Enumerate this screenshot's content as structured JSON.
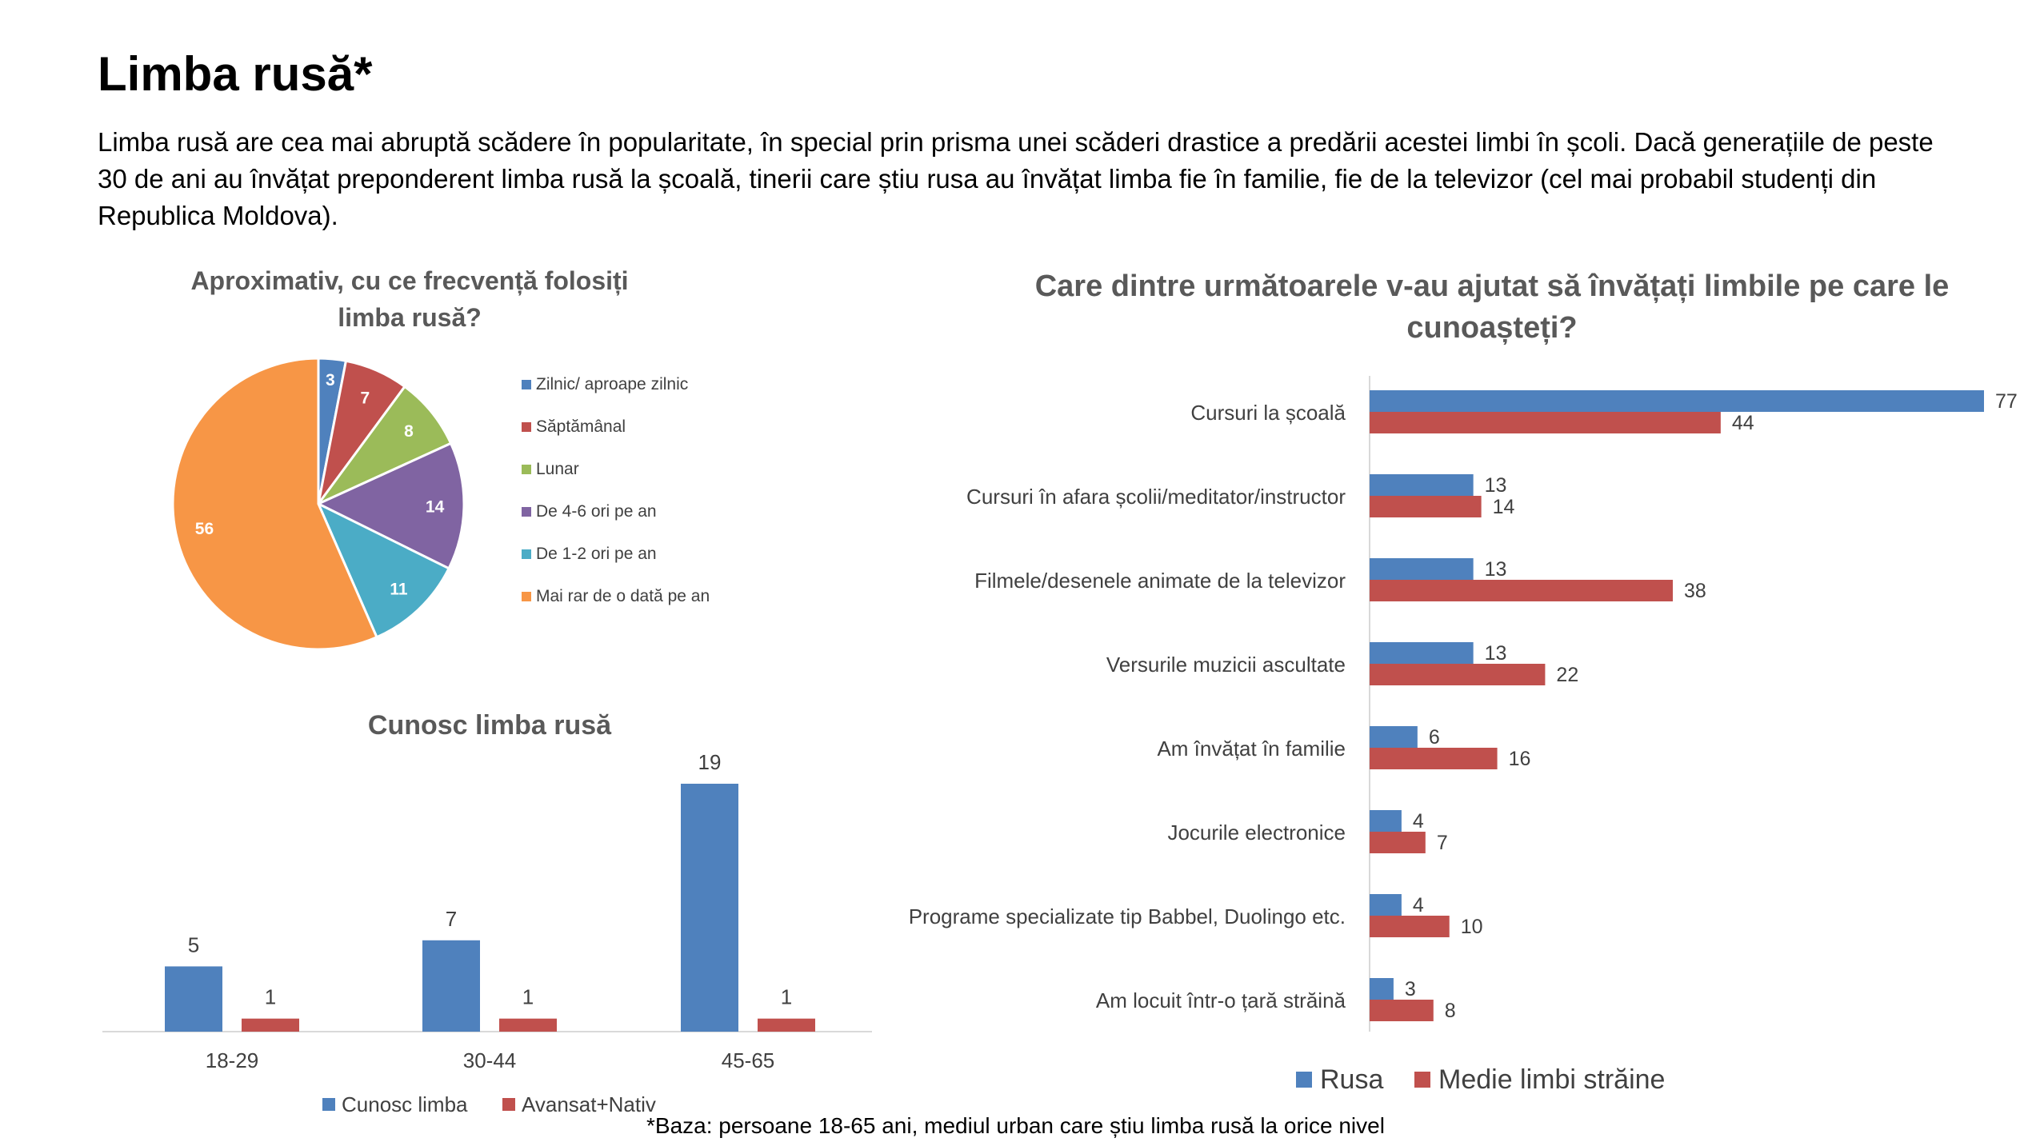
{
  "page": {
    "title": "Limba rusă*",
    "intro": "Limba rusă are cea mai abruptă scădere în popularitate, în special prin prisma unei scăderi drastice a predării acestei limbi în școli. Dacă generațiile de peste 30 de ani au învățat preponderent limba rusă la școală, tinerii care știu rusa au învățat limba fie în familie, fie de la televizor (cel mai probabil studenți din Republica Moldova).",
    "footnote": "*Baza: persoane 18-65 ani, mediul urban care știu limba rusă la orice nivel"
  },
  "chart_data": [
    {
      "type": "pie",
      "title": "Aproximativ, cu ce frecvență folosiți limba rusă?",
      "title_lines": [
        "Aproximativ, cu ce frecvență folosiți",
        "limba rusă?"
      ],
      "legend_position": "right",
      "labels": [
        "Zilnic/ aproape zilnic",
        "Săptămânal",
        "Lunar",
        "De 4-6 ori pe an",
        "De 1-2 ori pe an",
        "Mai rar de o dată pe an"
      ],
      "values": [
        3,
        7,
        8,
        14,
        11,
        56
      ],
      "colors": [
        "#4F81BD",
        "#C0504D",
        "#9BBB59",
        "#8064A2",
        "#4BACC6",
        "#F79646"
      ]
    },
    {
      "type": "bar",
      "title": "Cunosc limba rusă",
      "categories": [
        "18-29",
        "30-44",
        "45-65"
      ],
      "series": [
        {
          "name": "Cunosc limba",
          "values": [
            5,
            7,
            19
          ],
          "color": "#4F81BD"
        },
        {
          "name": "Avansat+Nativ",
          "values": [
            1,
            1,
            1
          ],
          "color": "#C0504D"
        }
      ],
      "ylim": [
        0,
        19
      ],
      "legend_position": "bottom",
      "grid": false
    },
    {
      "type": "bar",
      "orientation": "horizontal",
      "title": "Care dintre următoarele v-au ajutat să învățați limbile pe care le cunoașteți?",
      "title_lines": [
        "Care dintre următoarele v-au ajutat să învățați limbile pe care le",
        "cunoașteți?"
      ],
      "categories": [
        "Cursuri la școală",
        "Cursuri în afara școlii/meditator/instructor",
        "Filmele/desenele animate de la televizor",
        "Versurile muzicii ascultate",
        "Am învățat în familie",
        "Jocurile electronice",
        "Programe specializate tip Babbel, Duolingo etc.",
        "Am locuit într-o țară străină"
      ],
      "series": [
        {
          "name": "Rusa",
          "values": [
            77,
            13,
            13,
            13,
            6,
            4,
            4,
            3
          ],
          "color": "#4F81BD"
        },
        {
          "name": "Medie limbi străine",
          "values": [
            44,
            14,
            38,
            22,
            16,
            7,
            10,
            8
          ],
          "color": "#C0504D"
        }
      ],
      "xlim": [
        0,
        77
      ],
      "legend_position": "bottom",
      "grid": false
    }
  ]
}
